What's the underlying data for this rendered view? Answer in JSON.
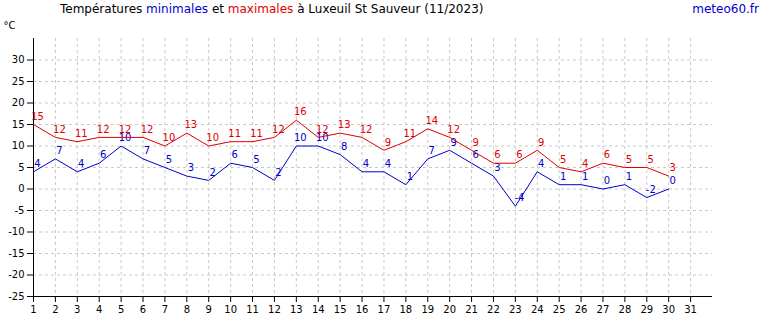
{
  "chart_data": {
    "type": "line",
    "title": "Températures minimales et maximales à Luxeuil St Sauveur (11/2023)",
    "source": "meteo60.fr",
    "y_label": "°C",
    "x": [
      1,
      2,
      3,
      4,
      5,
      6,
      7,
      8,
      9,
      10,
      11,
      12,
      13,
      14,
      15,
      16,
      17,
      18,
      19,
      20,
      21,
      22,
      23,
      24,
      25,
      26,
      27,
      28,
      29,
      30
    ],
    "series": [
      {
        "name": "minimales",
        "color": "#0000cc",
        "values": [
          4,
          7,
          4,
          6,
          10,
          7,
          5,
          3,
          2,
          6,
          5,
          2,
          10,
          10,
          8,
          4,
          4,
          1,
          7,
          9,
          6,
          3,
          -4,
          4,
          1,
          1,
          0,
          1,
          -2,
          0
        ]
      },
      {
        "name": "maximales",
        "color": "#e00000",
        "values": [
          15,
          12,
          11,
          12,
          12,
          12,
          10,
          13,
          10,
          11,
          11,
          12,
          16,
          12,
          13,
          12,
          9,
          11,
          14,
          12,
          9,
          6,
          6,
          9,
          5,
          4,
          6,
          5,
          5,
          3
        ]
      }
    ],
    "xlim": [
      1,
      32
    ],
    "xticks": [
      1,
      2,
      3,
      4,
      5,
      6,
      7,
      8,
      9,
      10,
      11,
      12,
      13,
      14,
      15,
      16,
      17,
      18,
      19,
      20,
      21,
      22,
      23,
      24,
      25,
      26,
      27,
      28,
      29,
      30,
      31
    ],
    "ylim": [
      -25,
      35
    ],
    "yticks": [
      -25,
      -20,
      -15,
      -10,
      -5,
      0,
      5,
      10,
      15,
      20,
      25,
      30
    ],
    "grid": true,
    "data_labels": true
  }
}
